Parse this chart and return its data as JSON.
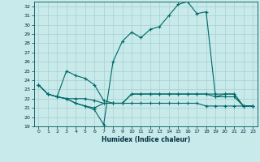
{
  "title": "",
  "xlabel": "Humidex (Indice chaleur)",
  "ylabel": "",
  "bg_color": "#c8eaea",
  "grid_color": "#a8d0d0",
  "line_color": "#006868",
  "xlim": [
    -0.5,
    23.5
  ],
  "ylim": [
    19,
    32.5
  ],
  "yticks": [
    19,
    20,
    21,
    22,
    23,
    24,
    25,
    26,
    27,
    28,
    29,
    30,
    31,
    32
  ],
  "xticks": [
    0,
    1,
    2,
    3,
    4,
    5,
    6,
    7,
    8,
    9,
    10,
    11,
    12,
    13,
    14,
    15,
    16,
    17,
    18,
    19,
    20,
    21,
    22,
    23
  ],
  "line1_x": [
    0,
    1,
    2,
    3,
    4,
    5,
    6,
    7,
    8,
    9,
    10,
    11,
    12,
    13,
    14,
    15,
    16,
    17,
    18,
    19,
    20,
    21,
    22,
    23
  ],
  "line1_y": [
    23.5,
    22.5,
    22.2,
    22.0,
    21.5,
    21.2,
    20.8,
    19.2,
    26.0,
    28.2,
    29.2,
    28.6,
    29.5,
    29.8,
    31.0,
    32.2,
    32.5,
    31.2,
    31.4,
    22.2,
    22.5,
    22.5,
    21.2,
    21.2
  ],
  "line2_x": [
    0,
    1,
    2,
    3,
    4,
    5,
    6,
    7,
    8,
    9,
    10,
    11,
    12,
    13,
    14,
    15,
    16,
    17,
    18,
    19,
    20,
    21,
    22,
    23
  ],
  "line2_y": [
    23.5,
    22.5,
    22.2,
    22.0,
    21.5,
    21.2,
    21.0,
    21.5,
    21.5,
    21.5,
    22.5,
    22.5,
    22.5,
    22.5,
    22.5,
    22.5,
    22.5,
    22.5,
    22.5,
    22.5,
    22.5,
    22.5,
    21.2,
    21.2
  ],
  "line3_x": [
    0,
    1,
    2,
    3,
    4,
    5,
    6,
    7,
    8,
    9,
    10,
    11,
    12,
    13,
    14,
    15,
    16,
    17,
    18,
    19,
    20,
    21,
    22,
    23
  ],
  "line3_y": [
    23.5,
    22.5,
    22.2,
    22.0,
    22.0,
    22.0,
    21.8,
    21.5,
    21.5,
    21.5,
    21.5,
    21.5,
    21.5,
    21.5,
    21.5,
    21.5,
    21.5,
    21.5,
    21.2,
    21.2,
    21.2,
    21.2,
    21.2,
    21.2
  ],
  "line4_x": [
    2,
    3,
    4,
    5,
    6,
    7,
    8,
    9,
    10,
    11,
    12,
    13,
    14,
    15,
    16,
    17,
    18,
    19,
    20,
    21,
    22,
    23
  ],
  "line4_y": [
    22.2,
    25.0,
    24.5,
    24.2,
    23.5,
    21.8,
    21.5,
    21.5,
    22.5,
    22.5,
    22.5,
    22.5,
    22.5,
    22.5,
    22.5,
    22.5,
    22.5,
    22.2,
    22.2,
    22.2,
    21.2,
    21.2
  ]
}
